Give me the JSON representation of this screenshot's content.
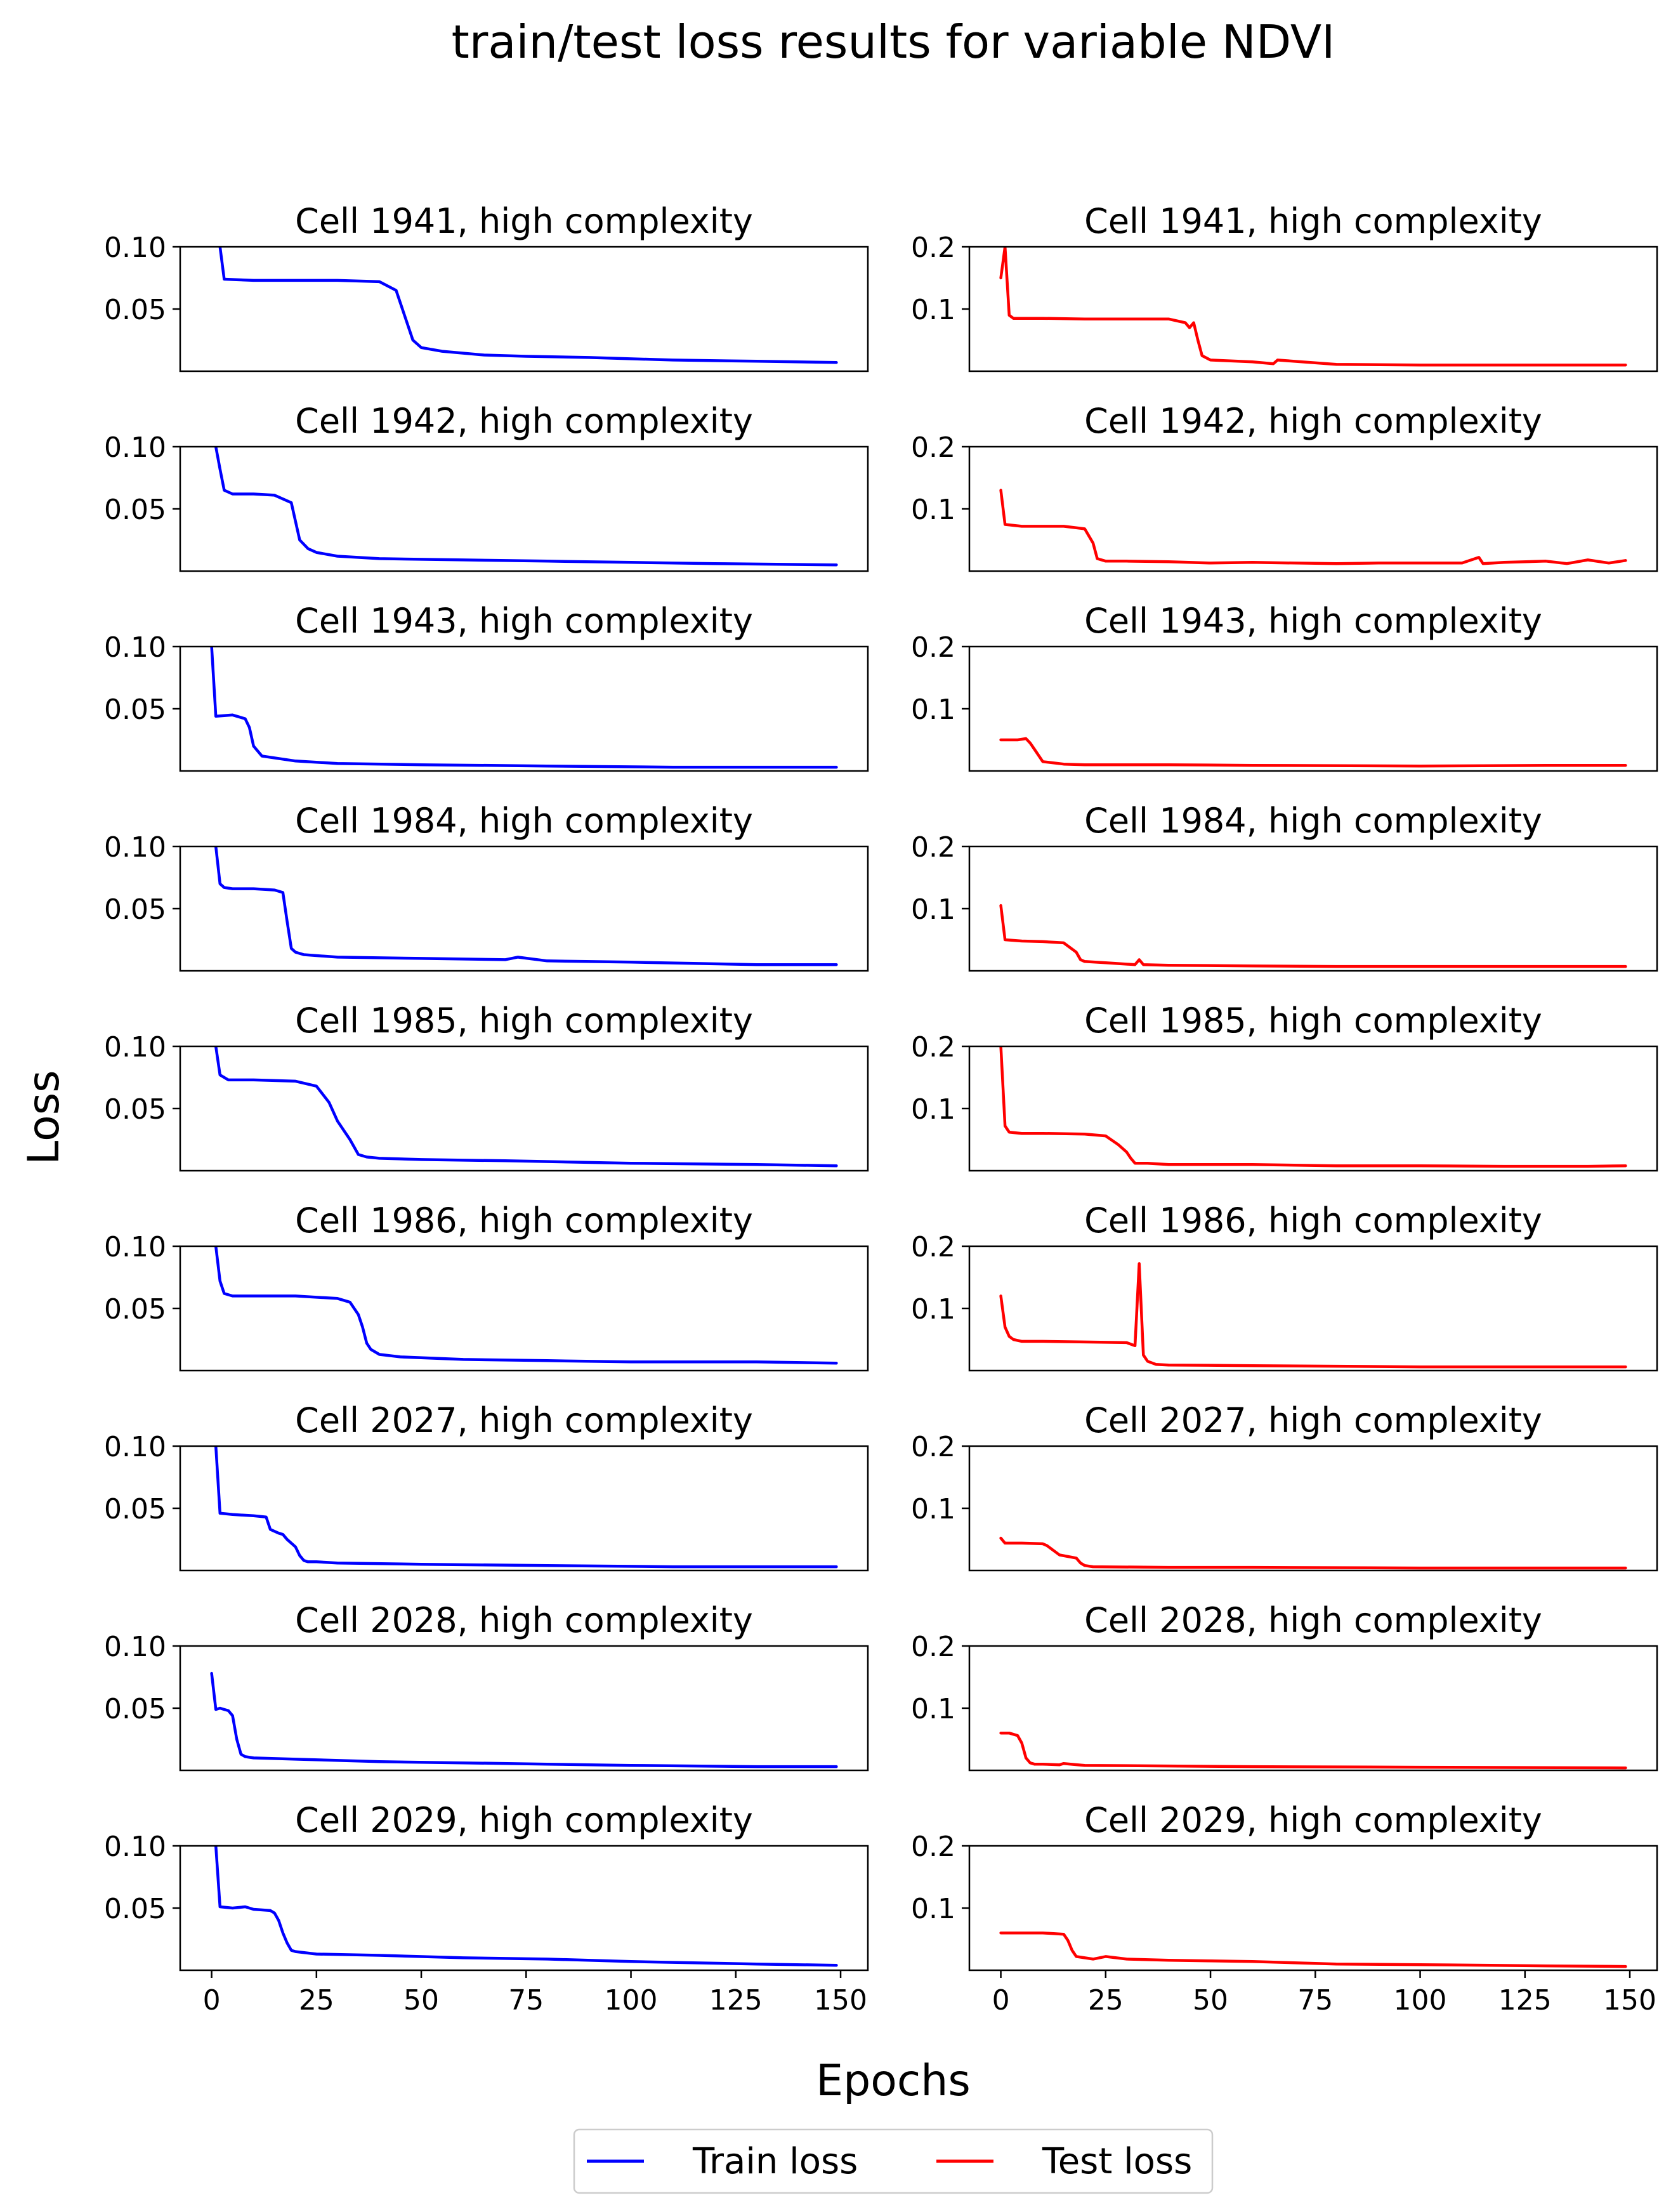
{
  "chart_data": {
    "type": "line",
    "title": "train/test loss results for variable NDVI",
    "xlabel": "Epochs",
    "ylabel": "Loss",
    "xticks": [
      0,
      25,
      50,
      75,
      100,
      125,
      150
    ],
    "xlim": [
      -7.5,
      156.5
    ],
    "train_panel": {
      "ylim": [
        0.0,
        0.1
      ],
      "yticks": [
        0.05,
        0.1
      ],
      "ytick_labels": [
        "0.05",
        "0.10"
      ]
    },
    "test_panel": {
      "ylim": [
        0.0,
        0.2
      ],
      "yticks": [
        0.1,
        0.2
      ],
      "ytick_labels": [
        "0.1",
        "0.2"
      ]
    },
    "legend": {
      "placement": "bottom-center",
      "entries": [
        {
          "label": "Train loss",
          "color": "#0000ff"
        },
        {
          "label": "Test loss",
          "color": "#ff0000"
        }
      ]
    },
    "cells": [
      {
        "title": "Cell 1941, high complexity",
        "train": {
          "name": "Train loss",
          "x": [
            2,
            3,
            10,
            20,
            30,
            40,
            44,
            46,
            48,
            50,
            55,
            65,
            75,
            90,
            110,
            130,
            149
          ],
          "y": [
            0.1,
            0.074,
            0.073,
            0.073,
            0.073,
            0.072,
            0.065,
            0.045,
            0.025,
            0.019,
            0.016,
            0.013,
            0.012,
            0.011,
            0.009,
            0.008,
            0.007
          ]
        },
        "test": {
          "name": "Test loss",
          "x": [
            0,
            1,
            2,
            3,
            10,
            20,
            30,
            40,
            44,
            45,
            46,
            47,
            48,
            50,
            60,
            65,
            66,
            80,
            100,
            120,
            149
          ],
          "y": [
            0.15,
            0.2,
            0.09,
            0.085,
            0.085,
            0.084,
            0.084,
            0.084,
            0.078,
            0.07,
            0.078,
            0.05,
            0.025,
            0.018,
            0.015,
            0.012,
            0.018,
            0.011,
            0.01,
            0.01,
            0.01
          ]
        }
      },
      {
        "title": "Cell 1942, high complexity",
        "train": {
          "name": "Train loss",
          "x": [
            1,
            2,
            3,
            5,
            10,
            15,
            19,
            20,
            21,
            23,
            25,
            30,
            40,
            60,
            80,
            100,
            120,
            149
          ],
          "y": [
            0.1,
            0.082,
            0.065,
            0.062,
            0.062,
            0.061,
            0.055,
            0.04,
            0.025,
            0.018,
            0.015,
            0.012,
            0.01,
            0.009,
            0.008,
            0.007,
            0.006,
            0.005
          ]
        },
        "test": {
          "name": "Test loss",
          "x": [
            0,
            1,
            5,
            15,
            20,
            22,
            23,
            25,
            30,
            40,
            50,
            60,
            70,
            80,
            90,
            100,
            110,
            114,
            115,
            120,
            130,
            135,
            140,
            145,
            149
          ],
          "y": [
            0.13,
            0.075,
            0.072,
            0.072,
            0.068,
            0.045,
            0.02,
            0.016,
            0.016,
            0.015,
            0.013,
            0.014,
            0.013,
            0.012,
            0.013,
            0.013,
            0.013,
            0.022,
            0.012,
            0.014,
            0.016,
            0.012,
            0.018,
            0.013,
            0.017
          ]
        }
      },
      {
        "title": "Cell 1943, high complexity",
        "train": {
          "name": "Train loss",
          "x": [
            0,
            1,
            5,
            7,
            8,
            9,
            10,
            12,
            20,
            30,
            50,
            80,
            110,
            149
          ],
          "y": [
            0.1,
            0.044,
            0.045,
            0.043,
            0.042,
            0.035,
            0.02,
            0.012,
            0.008,
            0.006,
            0.005,
            0.004,
            0.003,
            0.003
          ]
        },
        "test": {
          "name": "Test loss",
          "x": [
            0,
            4,
            6,
            7,
            8,
            10,
            15,
            20,
            40,
            60,
            100,
            130,
            149
          ],
          "y": [
            0.05,
            0.05,
            0.052,
            0.045,
            0.035,
            0.015,
            0.011,
            0.01,
            0.01,
            0.009,
            0.008,
            0.009,
            0.009
          ]
        }
      },
      {
        "title": "Cell 1984, high complexity",
        "train": {
          "name": "Train loss",
          "x": [
            1,
            2,
            3,
            5,
            10,
            15,
            17,
            18,
            19,
            20,
            22,
            30,
            50,
            70,
            73,
            80,
            100,
            130,
            149
          ],
          "y": [
            0.1,
            0.07,
            0.067,
            0.066,
            0.066,
            0.065,
            0.063,
            0.04,
            0.018,
            0.015,
            0.013,
            0.011,
            0.01,
            0.009,
            0.011,
            0.008,
            0.007,
            0.005,
            0.005
          ]
        },
        "test": {
          "name": "Test loss",
          "x": [
            0,
            1,
            5,
            10,
            15,
            17,
            18,
            19,
            20,
            25,
            32,
            33,
            34,
            40,
            60,
            80,
            100,
            149
          ],
          "y": [
            0.105,
            0.05,
            0.048,
            0.047,
            0.045,
            0.035,
            0.03,
            0.018,
            0.015,
            0.013,
            0.01,
            0.018,
            0.01,
            0.009,
            0.008,
            0.007,
            0.007,
            0.007
          ]
        }
      },
      {
        "title": "Cell 1985, high complexity",
        "train": {
          "name": "Train loss",
          "x": [
            1,
            2,
            4,
            10,
            20,
            25,
            28,
            30,
            33,
            35,
            37,
            40,
            50,
            70,
            100,
            130,
            149
          ],
          "y": [
            0.1,
            0.077,
            0.073,
            0.073,
            0.072,
            0.068,
            0.055,
            0.04,
            0.025,
            0.013,
            0.011,
            0.01,
            0.009,
            0.008,
            0.006,
            0.005,
            0.004
          ]
        },
        "test": {
          "name": "Test loss",
          "x": [
            0,
            1,
            2,
            5,
            10,
            20,
            25,
            28,
            30,
            31,
            32,
            35,
            40,
            60,
            80,
            100,
            120,
            140,
            149
          ],
          "y": [
            0.2,
            0.072,
            0.062,
            0.06,
            0.06,
            0.059,
            0.056,
            0.042,
            0.03,
            0.02,
            0.012,
            0.012,
            0.01,
            0.01,
            0.008,
            0.008,
            0.007,
            0.007,
            0.008
          ]
        }
      },
      {
        "title": "Cell 1986, high complexity",
        "train": {
          "name": "Train loss",
          "x": [
            1,
            2,
            3,
            5,
            10,
            20,
            30,
            33,
            35,
            36,
            37,
            38,
            40,
            45,
            60,
            80,
            100,
            130,
            149
          ],
          "y": [
            0.1,
            0.072,
            0.062,
            0.06,
            0.06,
            0.06,
            0.058,
            0.055,
            0.045,
            0.035,
            0.022,
            0.017,
            0.013,
            0.011,
            0.009,
            0.008,
            0.007,
            0.007,
            0.006
          ]
        },
        "test": {
          "name": "Test loss",
          "x": [
            0,
            1,
            2,
            3,
            5,
            10,
            20,
            30,
            32,
            33,
            34,
            35,
            37,
            40,
            60,
            80,
            100,
            120,
            149
          ],
          "y": [
            0.12,
            0.07,
            0.055,
            0.05,
            0.047,
            0.047,
            0.046,
            0.045,
            0.04,
            0.172,
            0.025,
            0.015,
            0.01,
            0.009,
            0.008,
            0.007,
            0.006,
            0.006,
            0.006
          ]
        }
      },
      {
        "title": "Cell 2027, high complexity",
        "train": {
          "name": "Train loss",
          "x": [
            1,
            2,
            5,
            10,
            13,
            14,
            16,
            17,
            18,
            19,
            20,
            21,
            22,
            23,
            25,
            30,
            50,
            80,
            110,
            149
          ],
          "y": [
            0.1,
            0.046,
            0.045,
            0.044,
            0.043,
            0.033,
            0.03,
            0.029,
            0.025,
            0.022,
            0.019,
            0.012,
            0.008,
            0.007,
            0.007,
            0.006,
            0.005,
            0.004,
            0.003,
            0.003
          ]
        },
        "test": {
          "name": "Test loss",
          "x": [
            0,
            1,
            2,
            5,
            10,
            11,
            14,
            18,
            19,
            20,
            22,
            40,
            60,
            100,
            149
          ],
          "y": [
            0.052,
            0.044,
            0.044,
            0.044,
            0.043,
            0.04,
            0.025,
            0.02,
            0.012,
            0.008,
            0.006,
            0.005,
            0.005,
            0.004,
            0.004
          ]
        }
      },
      {
        "title": "Cell 2028, high complexity",
        "train": {
          "name": "Train loss",
          "x": [
            0,
            1,
            2,
            3,
            4,
            5,
            6,
            7,
            8,
            10,
            20,
            40,
            60,
            80,
            100,
            130,
            149
          ],
          "y": [
            0.078,
            0.049,
            0.05,
            0.049,
            0.048,
            0.044,
            0.025,
            0.013,
            0.011,
            0.01,
            0.009,
            0.007,
            0.006,
            0.005,
            0.004,
            0.003,
            0.003
          ]
        },
        "test": {
          "name": "Test loss",
          "x": [
            0,
            2,
            3,
            4,
            5,
            6,
            7,
            8,
            10,
            14,
            15,
            20,
            40,
            60,
            100,
            149
          ],
          "y": [
            0.06,
            0.06,
            0.058,
            0.056,
            0.044,
            0.02,
            0.012,
            0.01,
            0.01,
            0.009,
            0.011,
            0.008,
            0.007,
            0.006,
            0.005,
            0.004
          ]
        }
      },
      {
        "title": "Cell 2029, high complexity",
        "train": {
          "name": "Train loss",
          "x": [
            1,
            2,
            5,
            8,
            10,
            14,
            15,
            16,
            17,
            18,
            19,
            20,
            25,
            40,
            60,
            80,
            100,
            130,
            149
          ],
          "y": [
            0.1,
            0.051,
            0.05,
            0.051,
            0.049,
            0.048,
            0.046,
            0.04,
            0.03,
            0.022,
            0.016,
            0.015,
            0.013,
            0.012,
            0.01,
            0.009,
            0.007,
            0.005,
            0.004
          ]
        },
        "test": {
          "name": "Test loss",
          "x": [
            0,
            5,
            10,
            15,
            16,
            17,
            18,
            20,
            22,
            25,
            30,
            40,
            50,
            60,
            75,
            80,
            100,
            130,
            149
          ],
          "y": [
            0.06,
            0.06,
            0.06,
            0.058,
            0.048,
            0.032,
            0.022,
            0.02,
            0.018,
            0.022,
            0.018,
            0.016,
            0.015,
            0.014,
            0.011,
            0.01,
            0.009,
            0.007,
            0.006
          ]
        }
      }
    ]
  }
}
